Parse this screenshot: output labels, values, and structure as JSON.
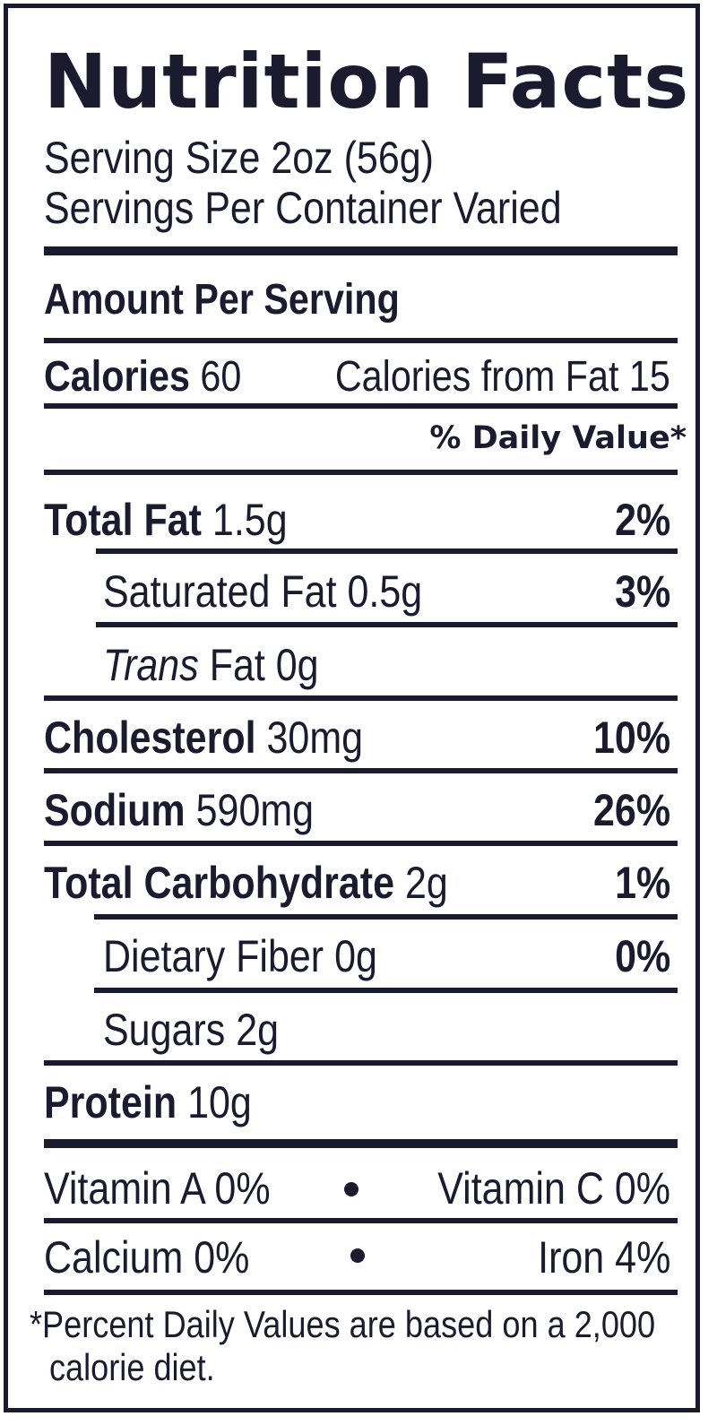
{
  "title": "Nutrition Facts",
  "serving_size": "Serving Size 2oz (56g)",
  "servings_per_container": "Servings Per Container Varied",
  "amount_per_serving": "Amount Per Serving",
  "calories": {
    "label": "Calories",
    "value": "60"
  },
  "calories_from_fat": "Calories from Fat 15",
  "daily_value_header": "% Daily Value*",
  "nutrients": {
    "total_fat": {
      "label": "Total Fat",
      "amount": "1.5g",
      "dv": "2%"
    },
    "saturated_fat": {
      "label": "Saturated Fat 0.5g",
      "dv": "3%"
    },
    "trans_fat": {
      "label_italic": "Trans",
      "label_rest": "Fat 0g"
    },
    "cholesterol": {
      "label": "Cholesterol",
      "amount": "30mg",
      "dv": "10%"
    },
    "sodium": {
      "label": "Sodium",
      "amount": "590mg",
      "dv": "26%"
    },
    "total_carbohydrate": {
      "label": "Total Carbohydrate",
      "amount": "2g",
      "dv": "1%"
    },
    "dietary_fiber": {
      "label": "Dietary Fiber 0g",
      "dv": "0%"
    },
    "sugars": {
      "label": "Sugars 2g"
    },
    "protein": {
      "label": "Protein",
      "amount": "10g"
    }
  },
  "vitamins": {
    "vitamin_a": "Vitamin A 0%",
    "vitamin_c": "Vitamin C 0%",
    "calcium": "Calcium 0%",
    "iron": "Iron 4%"
  },
  "footnote": {
    "line1": "*Percent Daily Values are based on a 2,000",
    "line2": "calorie diet."
  },
  "colors": {
    "ink": "#1a1b2e",
    "background": "#ffffff"
  }
}
